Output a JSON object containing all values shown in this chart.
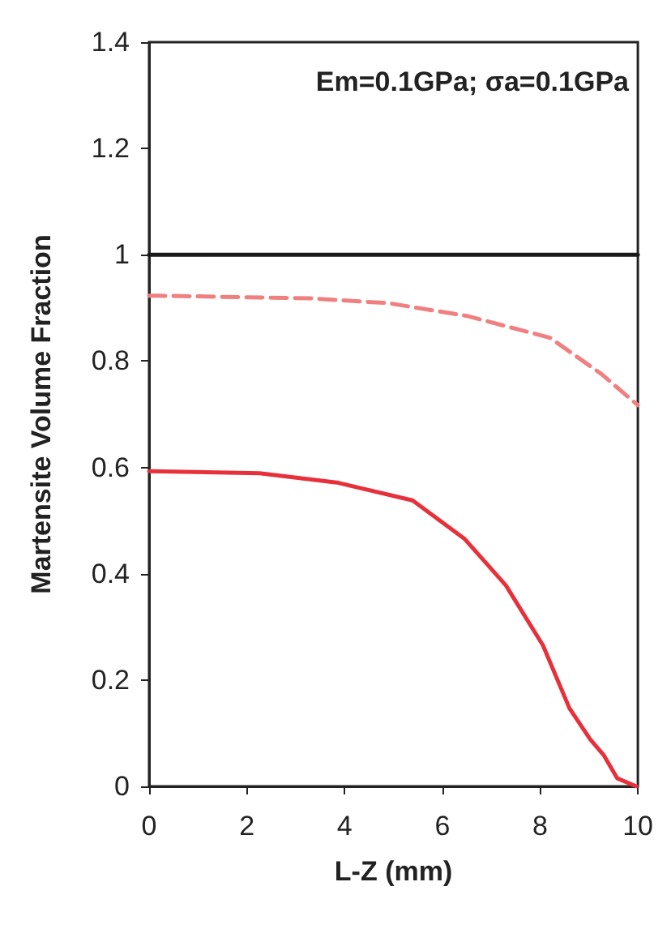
{
  "chart_data": {
    "type": "line",
    "xlabel": "L-Z (mm)",
    "ylabel": "Martensite Volume Fraction",
    "annotations": [
      "Em=0.1GPa; σa=0.1GPa"
    ],
    "xlim": [
      0,
      10
    ],
    "xticks": [
      0,
      2,
      4,
      6,
      8,
      10
    ],
    "ylim": [
      0,
      1.4
    ],
    "yticks": [
      0,
      0.2,
      0.4,
      0.6,
      0.8,
      1,
      1.2,
      1.4
    ],
    "grid": false,
    "marker": "none",
    "series": [
      {
        "color": "#1a1a1a",
        "line_style": "solid",
        "x": [
          0,
          10
        ],
        "values": [
          1,
          1
        ]
      },
      {
        "color": "#f08080",
        "line_style": "dashed",
        "x": [
          0,
          0.2,
          3.3,
          4.9,
          6.5,
          8.2,
          9.25,
          10
        ],
        "values": [
          0.923,
          0.923,
          0.918,
          0.909,
          0.885,
          0.844,
          0.776,
          0.717
        ]
      },
      {
        "color": "#e8303a",
        "line_style": "solid",
        "x": [
          0,
          2.26,
          3.87,
          5.39,
          6.45,
          7.3,
          8.06,
          8.6,
          9.03,
          9.3,
          9.58,
          9.97
        ],
        "values": [
          0.593,
          0.589,
          0.571,
          0.538,
          0.466,
          0.378,
          0.265,
          0.147,
          0.088,
          0.059,
          0.015,
          0
        ]
      }
    ]
  }
}
